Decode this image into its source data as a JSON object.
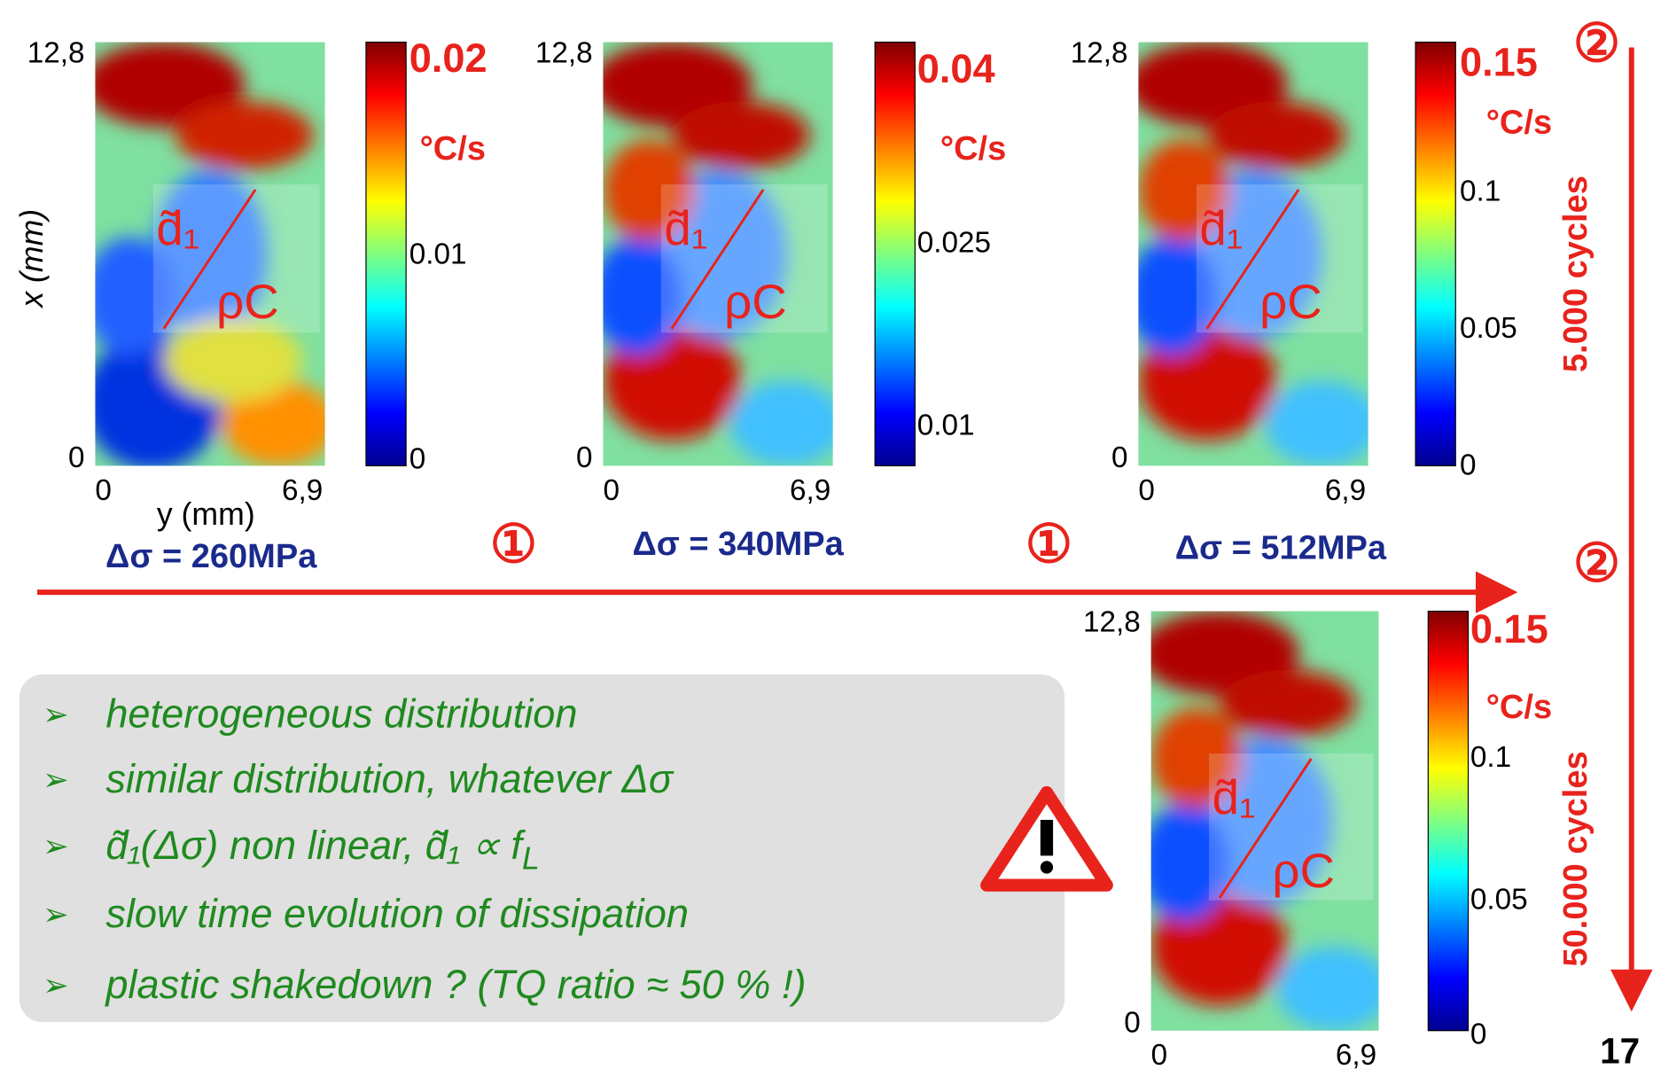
{
  "axis_labels": {
    "x": "x (mm)",
    "y": "y (mm)"
  },
  "overlay": {
    "numerator": "d̃₁",
    "denominator": "ρC"
  },
  "panels": [
    {
      "x_top": "12,8",
      "x_bottom": "0",
      "y_left": "0",
      "y_right": "6,9",
      "colorbar_max": "0.02",
      "unit": "°C/s",
      "colorbar_ticks": [
        "0.01",
        "0"
      ],
      "stress": "Δσ = 260MPa"
    },
    {
      "x_top": "12,8",
      "x_bottom": "0",
      "y_left": "0",
      "y_right": "6,9",
      "colorbar_max": "0.04",
      "unit": "°C/s",
      "colorbar_ticks": [
        "0.025",
        "0.01"
      ],
      "stress": "Δσ = 340MPa"
    },
    {
      "x_top": "12,8",
      "x_bottom": "0",
      "y_left": "0",
      "y_right": "6,9",
      "colorbar_max": "0.15",
      "unit": "°C/s",
      "colorbar_ticks": [
        "0.1",
        "0.05",
        "0"
      ],
      "stress": "Δσ = 512MPa"
    },
    {
      "x_top": "12,8",
      "x_bottom": "0",
      "y_left": "0",
      "y_right": "6,9",
      "colorbar_max": "0.15",
      "unit": "°C/s",
      "colorbar_ticks": [
        "0.1",
        "0.05",
        "0"
      ]
    }
  ],
  "steps": {
    "one": "①",
    "two": "②"
  },
  "cycles": [
    "5.000 cycles",
    "50.000 cycles"
  ],
  "bullets": [
    "heterogeneous distribution",
    "similar distribution, whatever Δσ",
    "d̃₁(Δσ) non linear,  d̃₁ ∝ f",
    "slow time evolution of  dissipation",
    "plastic shakedown ? (TQ ratio ≈ 50 % !)"
  ],
  "bullet_subscript": "L",
  "page_number": "17"
}
